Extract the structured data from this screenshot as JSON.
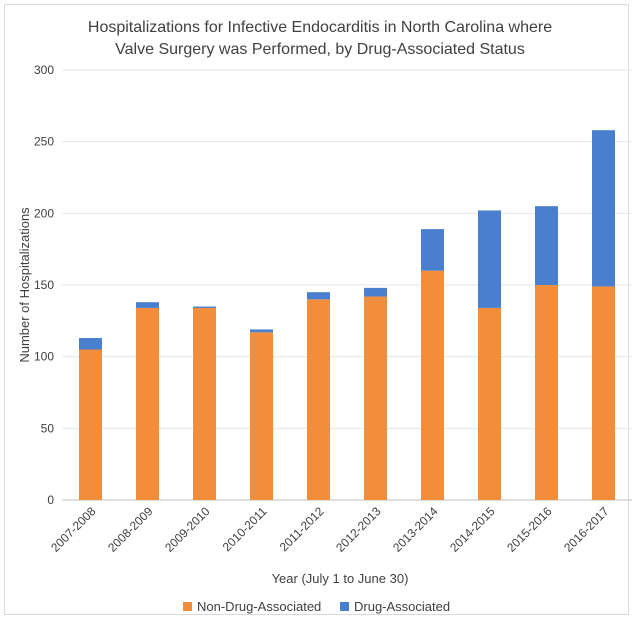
{
  "chart_data": {
    "type": "bar",
    "stacked": true,
    "title": [
      "Hospitalizations for Infective Endocarditis in North Carolina where",
      "Valve Surgery was Performed, by Drug-Associated Status"
    ],
    "xlabel": "Year (July 1 to June 30)",
    "ylabel": "Number of Hospitalizations",
    "ylim": [
      0,
      300
    ],
    "yticks": [
      0,
      50,
      100,
      150,
      200,
      250,
      300
    ],
    "grid": true,
    "legend_position": "bottom",
    "categories": [
      "2007-2008",
      "2008-2009",
      "2009-2010",
      "2010-2011",
      "2011-2012",
      "2012-2013",
      "2013-2014",
      "2014-2015",
      "2015-2016",
      "2016-2017"
    ],
    "series": [
      {
        "name": "Non-Drug-Associated",
        "color": "#f28e3b",
        "values": [
          105,
          134,
          134,
          117,
          140,
          142,
          160,
          134,
          150,
          149
        ]
      },
      {
        "name": "Drug-Associated",
        "color": "#4a7fd0",
        "values": [
          8,
          4,
          1,
          2,
          5,
          6,
          29,
          68,
          55,
          109
        ]
      }
    ]
  }
}
